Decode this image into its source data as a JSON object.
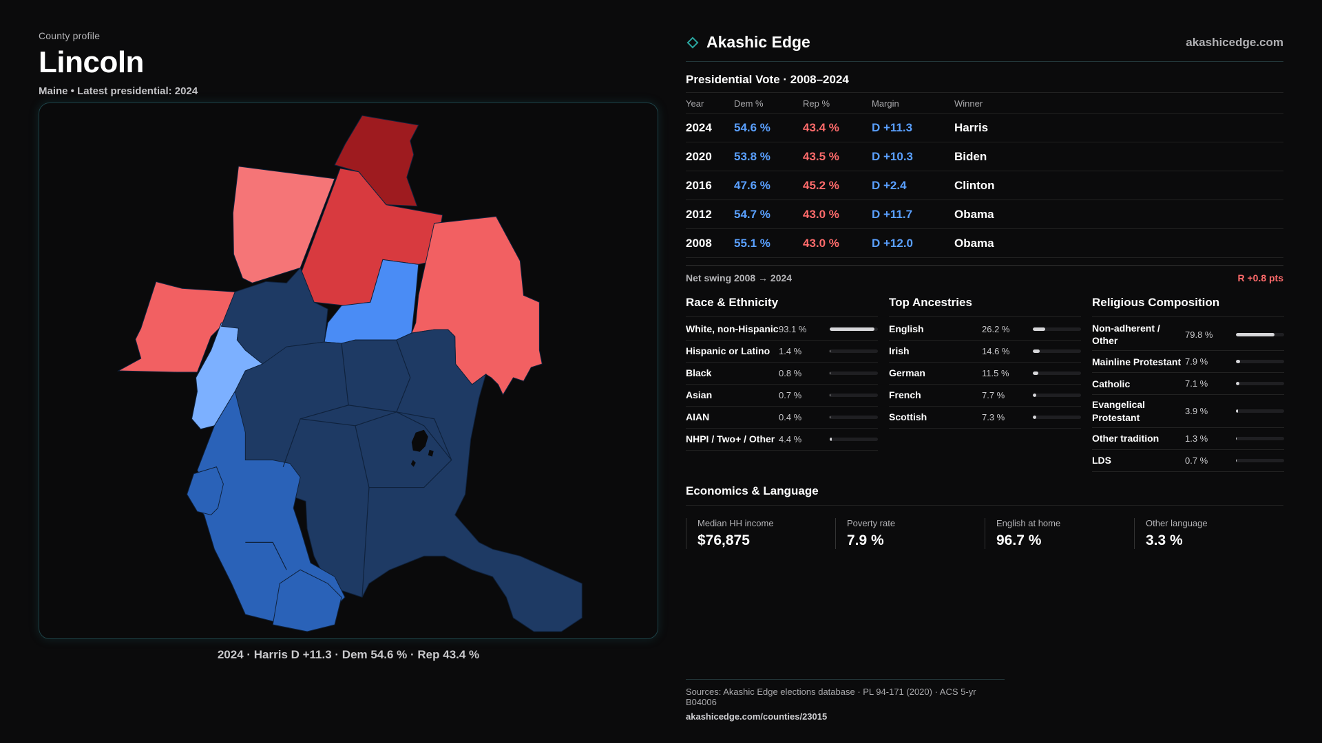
{
  "header": {
    "eyebrow": "County profile",
    "county": "Lincoln",
    "subtitle": "Maine • Latest presidential: 2024"
  },
  "map": {
    "caption": "2024 · Harris D +11.3 · Dem 54.6 % · Rep 43.4 %",
    "colors": {
      "dem_strong": "#1e3a64",
      "dem_mid": "#2a62b8",
      "dem_light": "#4a8cf5",
      "dem_pale": "#7cb0ff",
      "rep_dark": "#9e1b1f",
      "rep_mid": "#d83a3f",
      "rep_light": "#f26062",
      "rep_pale": "#f57577"
    }
  },
  "brand": {
    "name": "Akashic Edge",
    "url": "akashicedge.com",
    "icon": "diamond-outline-icon",
    "accent": "#2aa6a0"
  },
  "vote": {
    "title": "Presidential Vote · 2008–2024",
    "headers": {
      "year": "Year",
      "dem": "Dem %",
      "rep": "Rep %",
      "margin": "Margin",
      "winner": "Winner"
    },
    "rows": [
      {
        "year": "2024",
        "dem": "54.6 %",
        "rep": "43.4 %",
        "margin": "D +11.3",
        "winner": "Harris"
      },
      {
        "year": "2020",
        "dem": "53.8 %",
        "rep": "43.5 %",
        "margin": "D +10.3",
        "winner": "Biden"
      },
      {
        "year": "2016",
        "dem": "47.6 %",
        "rep": "45.2 %",
        "margin": "D +2.4",
        "winner": "Clinton"
      },
      {
        "year": "2012",
        "dem": "54.7 %",
        "rep": "43.0 %",
        "margin": "D +11.7",
        "winner": "Obama"
      },
      {
        "year": "2008",
        "dem": "55.1 %",
        "rep": "43.0 %",
        "margin": "D +12.0",
        "winner": "Obama"
      }
    ],
    "swing_label": "Net swing 2008 → 2024",
    "swing_value": "R +0.8 pts",
    "dem_color": "#5aa0ff",
    "rep_color": "#ff6b6b"
  },
  "race": {
    "title": "Race & Ethnicity",
    "items": [
      {
        "label": "White, non-Hispanic",
        "value": "93.1 %",
        "pct": 93.1
      },
      {
        "label": "Hispanic or Latino",
        "value": "1.4 %",
        "pct": 1.4
      },
      {
        "label": "Black",
        "value": "0.8 %",
        "pct": 0.8
      },
      {
        "label": "Asian",
        "value": "0.7 %",
        "pct": 0.7
      },
      {
        "label": "AIAN",
        "value": "0.4 %",
        "pct": 0.4
      },
      {
        "label": "NHPI / Two+ / Other",
        "value": "4.4 %",
        "pct": 4.4
      }
    ]
  },
  "ancestry": {
    "title": "Top Ancestries",
    "items": [
      {
        "label": "English",
        "value": "26.2 %",
        "pct": 26.2
      },
      {
        "label": "Irish",
        "value": "14.6 %",
        "pct": 14.6
      },
      {
        "label": "German",
        "value": "11.5 %",
        "pct": 11.5
      },
      {
        "label": "French",
        "value": "7.7 %",
        "pct": 7.7
      },
      {
        "label": "Scottish",
        "value": "7.3 %",
        "pct": 7.3
      }
    ]
  },
  "religion": {
    "title": "Religious Composition",
    "items": [
      {
        "label": "Non-adherent / Other",
        "value": "79.8 %",
        "pct": 79.8
      },
      {
        "label": "Mainline Protestant",
        "value": "7.9 %",
        "pct": 7.9
      },
      {
        "label": "Catholic",
        "value": "7.1 %",
        "pct": 7.1
      },
      {
        "label": "Evangelical Protestant",
        "value": "3.9 %",
        "pct": 3.9
      },
      {
        "label": "Other tradition",
        "value": "1.3 %",
        "pct": 1.3
      },
      {
        "label": "LDS",
        "value": "0.7 %",
        "pct": 0.7
      }
    ]
  },
  "economics": {
    "title": "Economics & Language",
    "cards": [
      {
        "label": "Median HH income",
        "value": "$76,875"
      },
      {
        "label": "Poverty rate",
        "value": "7.9 %"
      },
      {
        "label": "English at home",
        "value": "96.7 %"
      },
      {
        "label": "Other language",
        "value": "3.3 %"
      }
    ]
  },
  "sources": {
    "line": "Sources: Akashic Edge elections database · PL 94-171 (2020) · ACS 5-yr B04006",
    "url": "akashicedge.com/counties/23015"
  }
}
